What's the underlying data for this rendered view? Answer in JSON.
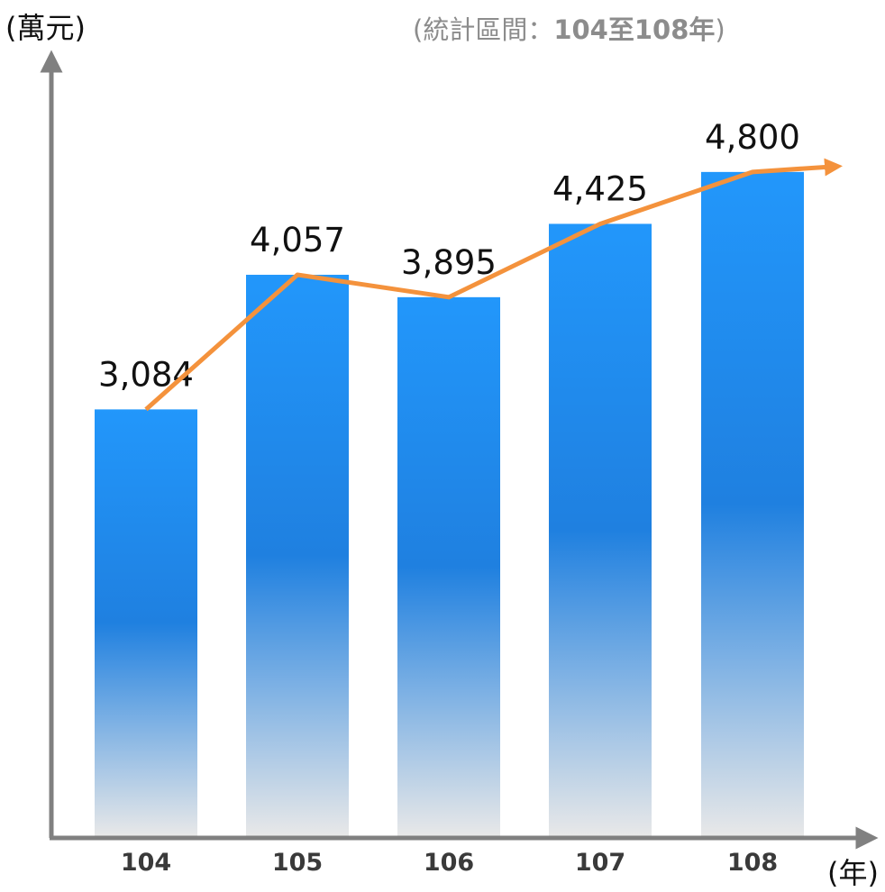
{
  "chart_data": {
    "type": "bar",
    "title": "",
    "ylabel": "(萬元)",
    "xlabel": "(年)",
    "subtitle": {
      "prefix": "(統計區間：",
      "range": "104至108年",
      "suffix": ")"
    },
    "categories": [
      "104",
      "105",
      "106",
      "107",
      "108"
    ],
    "values": [
      3084,
      4057,
      3895,
      4425,
      4800
    ],
    "value_labels": [
      "3,084",
      "4,057",
      "3,895",
      "4,425",
      "4,800"
    ],
    "trend_line": true,
    "ylim": [
      0,
      5600
    ],
    "grid": false,
    "legend": "none"
  },
  "colors": {
    "bar_top": "#2297fb",
    "bar_mid": "#1f80e0",
    "bar_bottom": "#e8e8e8",
    "trend": "#f4923c",
    "axis": "#808080"
  }
}
